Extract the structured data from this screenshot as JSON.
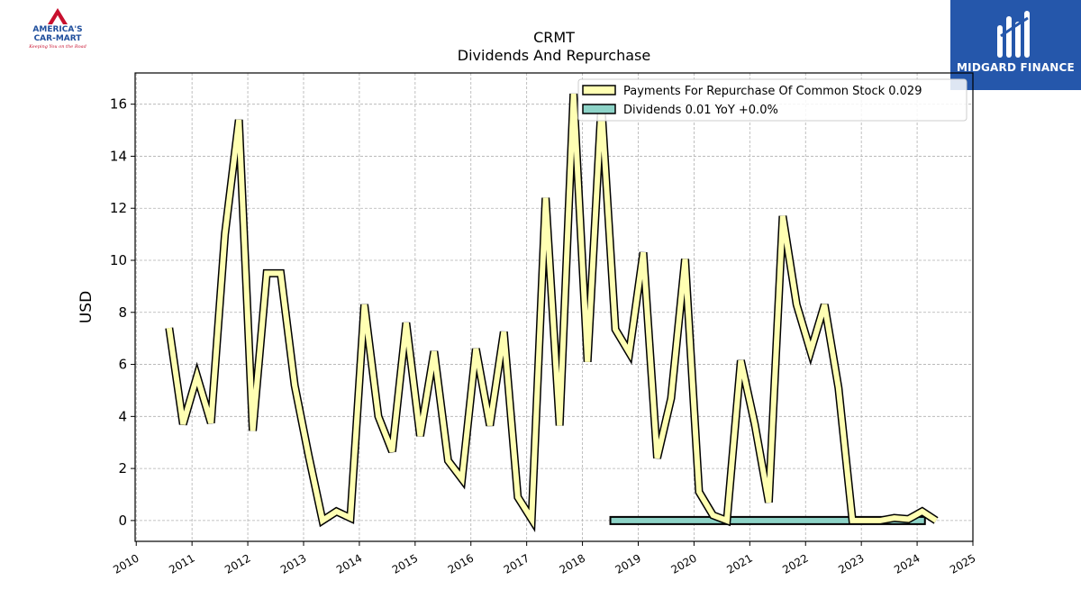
{
  "header": {
    "title": "CRMT",
    "subtitle": "Dividends And Repurchase"
  },
  "logos": {
    "left": {
      "line1": "AMERICA'S",
      "line2": "CAR-MART",
      "tagline": "Keeping You on the Road"
    },
    "right": {
      "name": "MIDGARD FINANCE",
      "bg_color": "#2557ab"
    }
  },
  "chart_data": {
    "type": "line",
    "title": "CRMT",
    "subtitle": "Dividends And Repurchase",
    "xlabel": "",
    "ylabel": "USD",
    "xlim": [
      2009.98,
      2025.0
    ],
    "ylim": [
      -0.8,
      17.2
    ],
    "x_ticks": [
      "2010",
      "2011",
      "2012",
      "2013",
      "2014",
      "2015",
      "2016",
      "2017",
      "2018",
      "2019",
      "2020",
      "2021",
      "2022",
      "2023",
      "2024",
      "2025"
    ],
    "y_ticks": [
      0,
      2,
      4,
      6,
      8,
      10,
      12,
      14,
      16
    ],
    "grid": true,
    "legend_position": "top-right",
    "series": [
      {
        "name": "Payments For Repurchase Of Common Stock  0.029",
        "color": "#ffffb3",
        "edge": "#000000",
        "x": [
          2010.59,
          2010.84,
          2011.09,
          2011.34,
          2011.59,
          2011.84,
          2012.09,
          2012.34,
          2012.59,
          2012.84,
          2013.09,
          2013.34,
          2013.59,
          2013.84,
          2014.09,
          2014.34,
          2014.59,
          2014.84,
          2015.09,
          2015.34,
          2015.59,
          2015.84,
          2016.09,
          2016.34,
          2016.59,
          2016.84,
          2017.09,
          2017.34,
          2017.59,
          2017.84,
          2018.09,
          2018.34,
          2018.59,
          2018.84,
          2019.09,
          2019.34,
          2019.59,
          2019.84,
          2020.09,
          2020.34,
          2020.59,
          2020.84,
          2021.09,
          2021.34,
          2021.59,
          2021.84,
          2022.09,
          2022.34,
          2022.59,
          2022.84,
          2023.09,
          2023.34,
          2023.59,
          2023.84,
          2024.09,
          2024.34
        ],
        "values": [
          7.4,
          3.7,
          5.55,
          3.75,
          11.0,
          15.4,
          3.45,
          9.5,
          9.5,
          5.2,
          2.5,
          0.0,
          0.35,
          0.1,
          8.3,
          4.0,
          2.65,
          7.6,
          3.25,
          6.5,
          2.3,
          1.6,
          6.6,
          3.65,
          7.25,
          0.9,
          0.05,
          12.4,
          3.65,
          16.4,
          6.1,
          16.0,
          7.35,
          6.45,
          10.3,
          2.4,
          4.7,
          10.05,
          1.1,
          0.2,
          0.0,
          6.15,
          3.7,
          0.7,
          11.7,
          8.3,
          6.5,
          8.3,
          5.1,
          0.0,
          0.0,
          0.0,
          0.1,
          0.05,
          0.35,
          0.0
        ]
      },
      {
        "name": "Dividends  0.01 YoY +0.0%",
        "color": "#8dd3c7",
        "edge": "#000000",
        "x": [
          2018.5,
          2024.14
        ],
        "values": [
          0.0,
          0.0
        ]
      }
    ]
  }
}
